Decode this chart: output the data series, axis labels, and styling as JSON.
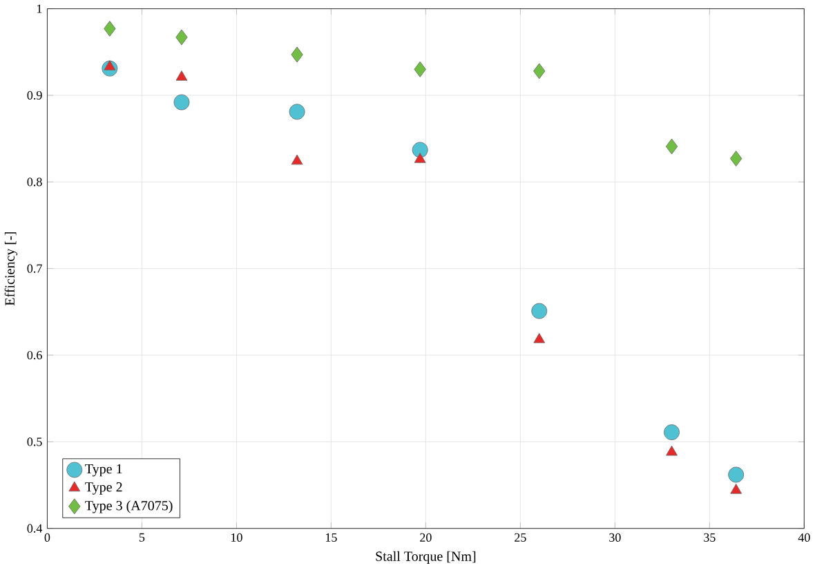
{
  "chart_data": {
    "type": "scatter",
    "xlabel": "Stall Torque [Nm]",
    "ylabel": "Efficiency [-]",
    "xlim": [
      0,
      40
    ],
    "ylim": [
      0.4,
      1
    ],
    "xticks": [
      0,
      5,
      10,
      15,
      20,
      25,
      30,
      35,
      40
    ],
    "yticks": [
      0.4,
      0.5,
      0.6,
      0.7,
      0.8,
      0.9,
      1
    ],
    "grid": true,
    "legend": "bottom left",
    "series": [
      {
        "name": "Type 1",
        "color": "#4fc1d3",
        "marker": "circle",
        "x": [
          3.3,
          7.1,
          13.2,
          19.7,
          26,
          33,
          36.4
        ],
        "values": [
          0.931,
          0.892,
          0.881,
          0.837,
          0.651,
          0.511,
          0.462
        ]
      },
      {
        "name": "Type 2",
        "color": "#e52a2a",
        "marker": "triangle",
        "x": [
          3.3,
          7.1,
          13.2,
          19.7,
          26,
          33,
          36.4
        ],
        "values": [
          0.933,
          0.921,
          0.824,
          0.826,
          0.618,
          0.488,
          0.444
        ]
      },
      {
        "name": "Type 3 (A7075)",
        "color": "#72bd44",
        "marker": "diamond",
        "x": [
          3.3,
          7.1,
          13.2,
          19.7,
          26,
          33,
          36.4
        ],
        "values": [
          0.977,
          0.967,
          0.947,
          0.93,
          0.928,
          0.841,
          0.827
        ]
      }
    ]
  }
}
